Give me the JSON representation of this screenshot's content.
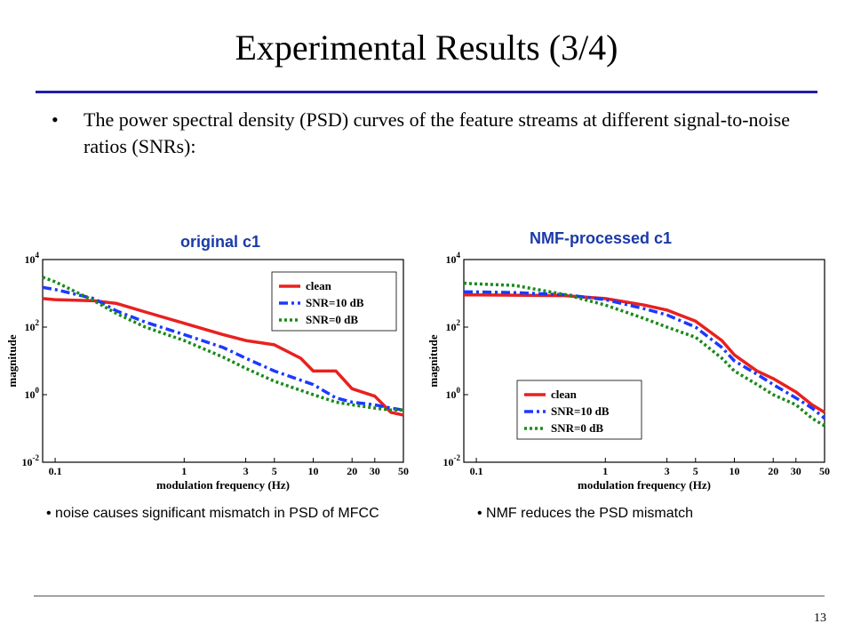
{
  "slide": {
    "title": "Experimental Results (3/4)",
    "bullet": "The power spectral density (PSD) curves of the feature streams at different signal-to-noise ratios (SNRs):",
    "page_number": "13"
  },
  "charts": {
    "left": {
      "title": "original c1",
      "caption": "noise causes significant mismatch in PSD of MFCC",
      "legend_position": "top-right"
    },
    "right": {
      "title": "NMF-processed c1",
      "caption": "NMF reduces the PSD mismatch",
      "legend_position": "lower-left"
    }
  },
  "colors": {
    "clean": "#e8211f",
    "snr10": "#1a3aff",
    "snr0": "#1a8a1a",
    "title_rule": "#1f1fa8",
    "chart_title": "#1a3aa8"
  },
  "chart_data": [
    {
      "type": "line",
      "title": "original c1",
      "xlabel": "modulation frequency (Hz)",
      "ylabel": "magnitude",
      "xscale": "log",
      "yscale": "log",
      "xlim": [
        0.08,
        50
      ],
      "ylim": [
        0.01,
        10000
      ],
      "xticks": [
        "0.1",
        "1",
        "3",
        "5",
        "10",
        "20",
        "30",
        "50"
      ],
      "yticks": [
        "10^4",
        "10^2",
        "10^0",
        "10^-2"
      ],
      "legend": "top-right",
      "series": [
        {
          "name": "clean",
          "style": "solid",
          "x": [
            0.08,
            0.1,
            0.2,
            0.3,
            0.5,
            1,
            2,
            3,
            5,
            8,
            10,
            15,
            20,
            30,
            40,
            50
          ],
          "y": [
            700,
            650,
            600,
            500,
            280,
            130,
            60,
            40,
            30,
            12,
            5,
            5,
            1.5,
            0.9,
            0.3,
            0.25
          ]
        },
        {
          "name": "SNR=10 dB",
          "style": "dashdot",
          "x": [
            0.08,
            0.1,
            0.2,
            0.3,
            0.5,
            1,
            2,
            3,
            5,
            10,
            15,
            20,
            30,
            40,
            50
          ],
          "y": [
            1500,
            1300,
            700,
            300,
            140,
            60,
            25,
            12,
            5,
            2,
            0.8,
            0.6,
            0.5,
            0.4,
            0.35
          ]
        },
        {
          "name": "SNR=0 dB",
          "style": "dotted",
          "x": [
            0.08,
            0.1,
            0.2,
            0.3,
            0.5,
            1,
            2,
            3,
            5,
            10,
            15,
            20,
            30,
            40,
            50
          ],
          "y": [
            3000,
            2200,
            600,
            250,
            100,
            40,
            13,
            6,
            2.5,
            1,
            0.6,
            0.5,
            0.4,
            0.35,
            0.35
          ]
        }
      ]
    },
    {
      "type": "line",
      "title": "NMF-processed c1",
      "xlabel": "modulation frequency (Hz)",
      "ylabel": "magnitude",
      "xscale": "log",
      "yscale": "log",
      "xlim": [
        0.08,
        50
      ],
      "ylim": [
        0.01,
        10000
      ],
      "xticks": [
        "0.1",
        "1",
        "3",
        "5",
        "10",
        "20",
        "30",
        "50"
      ],
      "yticks": [
        "10^4",
        "10^2",
        "10^0",
        "10^-2"
      ],
      "legend": "lower-left",
      "series": [
        {
          "name": "clean",
          "style": "solid",
          "x": [
            0.08,
            0.1,
            0.2,
            0.5,
            1,
            2,
            3,
            5,
            8,
            10,
            15,
            20,
            30,
            40,
            50
          ],
          "y": [
            900,
            900,
            880,
            850,
            700,
            450,
            320,
            150,
            40,
            15,
            5,
            3,
            1.2,
            0.5,
            0.3
          ]
        },
        {
          "name": "SNR=10 dB",
          "style": "dashdot",
          "x": [
            0.08,
            0.1,
            0.2,
            0.5,
            1,
            2,
            3,
            5,
            8,
            10,
            15,
            20,
            30,
            40,
            50
          ],
          "y": [
            1100,
            1100,
            1050,
            900,
            650,
            350,
            230,
            100,
            25,
            10,
            4,
            2,
            0.8,
            0.4,
            0.2
          ]
        },
        {
          "name": "SNR=0 dB",
          "style": "dotted",
          "x": [
            0.08,
            0.1,
            0.2,
            0.5,
            1,
            2,
            3,
            5,
            8,
            10,
            15,
            20,
            30,
            40,
            50
          ],
          "y": [
            2000,
            1900,
            1700,
            900,
            450,
            180,
            100,
            50,
            12,
            5,
            2,
            1,
            0.5,
            0.2,
            0.12
          ]
        }
      ]
    }
  ]
}
